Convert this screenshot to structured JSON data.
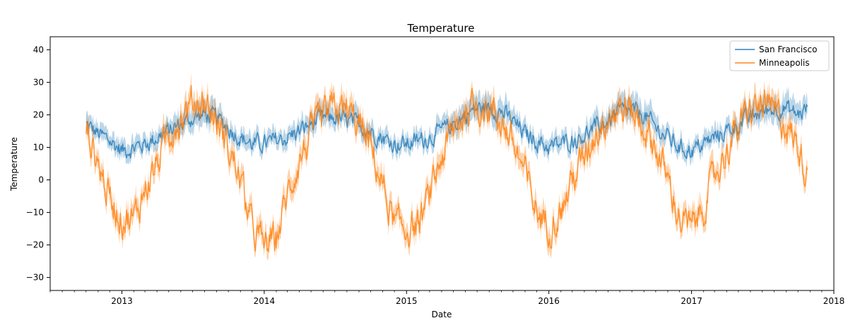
{
  "chart_data": {
    "type": "line",
    "title": "Temperature",
    "xlabel": "Date",
    "ylabel": "Temperature",
    "xlim": [
      "2012-07-01",
      "2018-01-01"
    ],
    "ylim": [
      -34,
      44
    ],
    "x_ticks": [
      "2013",
      "2014",
      "2015",
      "2016",
      "2017",
      "2018"
    ],
    "y_ticks": [
      40,
      30,
      20,
      10,
      0,
      -10,
      -20,
      -30
    ],
    "legend": {
      "placement": "top-right",
      "entries": [
        "San Francisco",
        "Minneapolis"
      ]
    },
    "grid": false,
    "x": [
      "2012-10-01",
      "2012-11-01",
      "2012-12-01",
      "2013-01-01",
      "2013-02-01",
      "2013-03-01",
      "2013-04-01",
      "2013-05-01",
      "2013-06-01",
      "2013-07-01",
      "2013-08-01",
      "2013-09-01",
      "2013-10-01",
      "2013-11-01",
      "2013-12-01",
      "2014-01-01",
      "2014-02-01",
      "2014-03-01",
      "2014-04-01",
      "2014-05-01",
      "2014-06-01",
      "2014-07-01",
      "2014-08-01",
      "2014-09-01",
      "2014-10-01",
      "2014-11-01",
      "2014-12-01",
      "2015-01-01",
      "2015-02-01",
      "2015-03-01",
      "2015-04-01",
      "2015-05-01",
      "2015-06-01",
      "2015-07-01",
      "2015-08-01",
      "2015-09-01",
      "2015-10-01",
      "2015-11-01",
      "2015-12-01",
      "2016-01-01",
      "2016-02-01",
      "2016-03-01",
      "2016-04-01",
      "2016-05-01",
      "2016-06-01",
      "2016-07-01",
      "2016-08-01",
      "2016-09-01",
      "2016-10-01",
      "2016-11-01",
      "2016-12-01",
      "2017-01-01",
      "2017-02-01",
      "2017-03-01",
      "2017-04-01",
      "2017-05-01",
      "2017-06-01",
      "2017-07-01",
      "2017-08-01",
      "2017-09-01",
      "2017-10-01",
      "2017-10-25"
    ],
    "series": [
      {
        "name": "San Francisco",
        "color": "#1f77b4",
        "values": [
          17,
          14,
          12,
          9,
          10,
          11,
          13,
          15,
          17,
          19,
          20,
          19,
          16,
          13,
          11,
          11,
          12,
          13,
          15,
          17,
          19,
          19,
          18,
          17,
          15,
          13,
          11,
          11,
          12,
          13,
          15,
          17,
          20,
          22,
          22,
          21,
          18,
          14,
          12,
          10,
          11,
          12,
          14,
          16,
          18,
          21,
          21,
          20,
          16,
          13,
          10,
          9,
          11,
          13,
          15,
          17,
          19,
          21,
          22,
          22,
          20,
          22
        ],
        "band": [
          5,
          5,
          5,
          5,
          5,
          5,
          5,
          5,
          6,
          7,
          7,
          6,
          5,
          5,
          5,
          5,
          5,
          5,
          5,
          6,
          6,
          6,
          6,
          6,
          5,
          5,
          5,
          5,
          5,
          5,
          5,
          6,
          7,
          7,
          7,
          7,
          6,
          5,
          5,
          5,
          5,
          5,
          5,
          6,
          6,
          7,
          7,
          7,
          6,
          5,
          5,
          5,
          5,
          5,
          5,
          6,
          6,
          7,
          7,
          7,
          6,
          6
        ]
      },
      {
        "name": "Minneapolis",
        "color": "#ff7f0e",
        "values": [
          16,
          5,
          -6,
          -12,
          -12,
          -3,
          5,
          14,
          19,
          24,
          24,
          18,
          10,
          0,
          -15,
          -20,
          -18,
          -5,
          6,
          14,
          19,
          22,
          21,
          17,
          10,
          -2,
          -14,
          -15,
          -14,
          -5,
          7,
          15,
          21,
          23,
          22,
          18,
          11,
          2,
          -10,
          -14,
          -10,
          0,
          7,
          15,
          20,
          22,
          21,
          16,
          10,
          0,
          -12,
          -15,
          -8,
          1,
          9,
          16,
          21,
          23,
          21,
          17,
          10,
          2
        ],
        "band": [
          5,
          6,
          6,
          6,
          6,
          6,
          6,
          6,
          6,
          6,
          6,
          6,
          6,
          6,
          6,
          6,
          6,
          6,
          6,
          6,
          6,
          6,
          6,
          6,
          6,
          6,
          6,
          6,
          6,
          6,
          6,
          6,
          6,
          6,
          6,
          6,
          6,
          6,
          6,
          6,
          6,
          6,
          6,
          6,
          6,
          6,
          6,
          6,
          6,
          6,
          6,
          6,
          6,
          6,
          6,
          6,
          6,
          6,
          6,
          6,
          6,
          6
        ]
      }
    ]
  }
}
